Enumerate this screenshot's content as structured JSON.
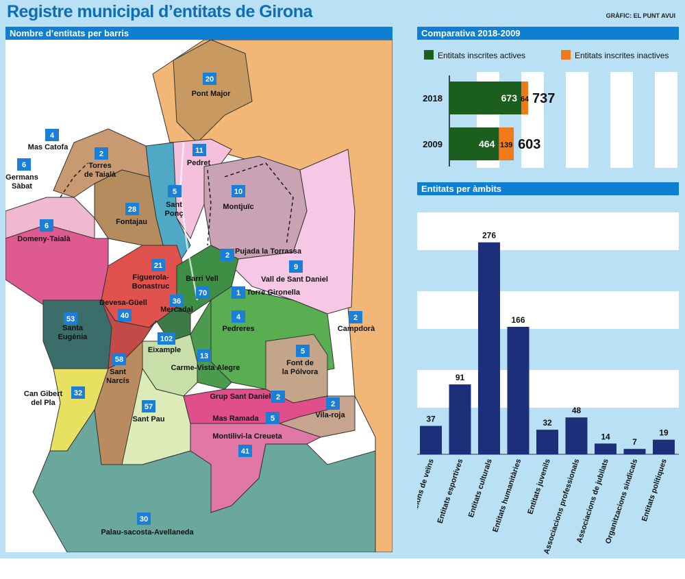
{
  "title": "Registre municipal d’entitats de Girona",
  "credit": "GRÀFIC: EL PUNT AVUI",
  "map": {
    "header": "Nombre d’entitats per barris",
    "neighborhoods": [
      {
        "name": "Pont Major",
        "count": "20"
      },
      {
        "name": "Mas Catofa",
        "count": "4"
      },
      {
        "name": "Torres de Taialà",
        "count": "2"
      },
      {
        "name": "Germans Sàbat",
        "count": "6"
      },
      {
        "name": "Pedret",
        "count": "11"
      },
      {
        "name": "Sant Ponç",
        "count": "5"
      },
      {
        "name": "Fontajau",
        "count": "28"
      },
      {
        "name": "Domeny-Taialà",
        "count": "6"
      },
      {
        "name": "Montjuïc",
        "count": "10"
      },
      {
        "name": "Pujada la Torrassa",
        "count": "2"
      },
      {
        "name": "Vall de Sant Daniel",
        "count": "9"
      },
      {
        "name": "Figuerola-Bonastruc",
        "count": "21"
      },
      {
        "name": "Barri Vell",
        "count": "70"
      },
      {
        "name": "Torre Gironella",
        "count": "1"
      },
      {
        "name": "Devesa-Güell",
        "count": "40"
      },
      {
        "name": "Mercadal",
        "count": "36"
      },
      {
        "name": "Santa Eugènia",
        "count": "53"
      },
      {
        "name": "Pedreres",
        "count": "4"
      },
      {
        "name": "Campdorà",
        "count": "2"
      },
      {
        "name": "Eixample",
        "count": "102"
      },
      {
        "name": "Font de la Pólvora",
        "count": "5"
      },
      {
        "name": "Sant Narcís",
        "count": "58"
      },
      {
        "name": "Carme-Vista Alegre",
        "count": "13"
      },
      {
        "name": "Can Gibert del Pla",
        "count": "32"
      },
      {
        "name": "Grup Sant Daniel",
        "count": "2"
      },
      {
        "name": "Vila-roja",
        "count": "2"
      },
      {
        "name": "Sant Pau",
        "count": "57"
      },
      {
        "name": "Mas Ramada",
        "count": "5"
      },
      {
        "name": "Montilivi-la Creueta",
        "count": "41"
      },
      {
        "name": "Palau-sacosta-Avellaneda",
        "count": "30"
      }
    ]
  },
  "chart_data": [
    {
      "type": "bar",
      "orientation": "horizontal",
      "stacked": true,
      "title": "Comparativa 2018-2009",
      "categories": [
        "2018",
        "2009"
      ],
      "series": [
        {
          "name": "Entitats inscrites actives",
          "values": [
            673,
            464
          ],
          "color": "#1b5e1e"
        },
        {
          "name": "Entitats inscrites inactives",
          "values": [
            64,
            139
          ],
          "color": "#f07a1a"
        }
      ],
      "totals": [
        737,
        603
      ],
      "xlim": [
        0,
        1000
      ],
      "legend": "top"
    },
    {
      "type": "bar",
      "title": "Entitats per àmbits",
      "color": "#1d2f7a",
      "categories": [
        "Associacions de veïns",
        "Entitats esportives",
        "Entitats culturals",
        "Entitats humanitàries",
        "Entitats juvenils",
        "Associacions professionals",
        "Associacions de jubilats",
        "Organitzacions sindicals",
        "Entitats polítiques"
      ],
      "values": [
        37,
        91,
        276,
        166,
        32,
        48,
        14,
        7,
        19
      ],
      "ylim": [
        0,
        300
      ]
    }
  ]
}
